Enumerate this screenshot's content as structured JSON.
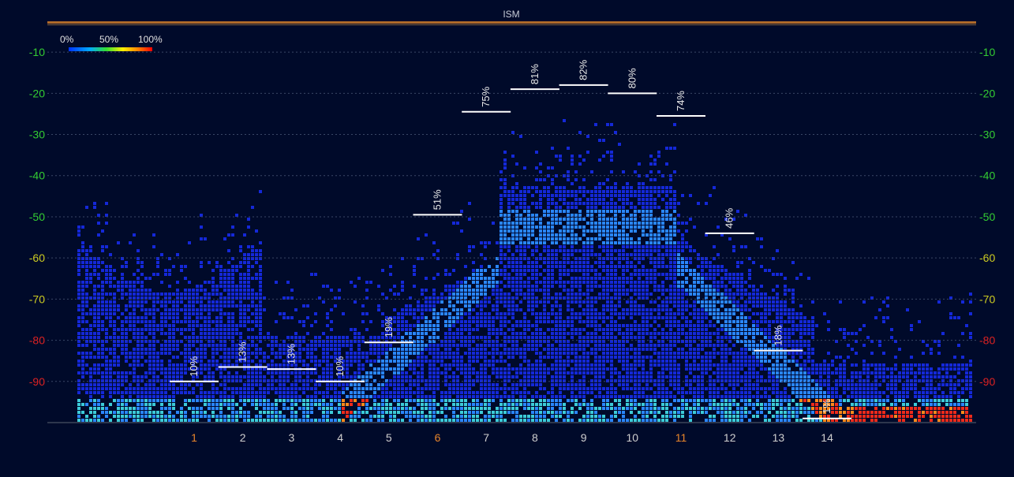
{
  "chart_data": {
    "type": "heatmap",
    "title": "ISM",
    "legend": {
      "labels": [
        "0%",
        "50%",
        "100%"
      ],
      "placement": "top-left"
    },
    "ylim": [
      -100,
      -5
    ],
    "yticks": [
      -10,
      -20,
      -30,
      -40,
      -50,
      -60,
      -70,
      -80,
      -90
    ],
    "ytick_colors": {
      "-10": "#33cc33",
      "-20": "#33cc33",
      "-30": "#33cc33",
      "-40": "#33cc33",
      "-50": "#33cc33",
      "-60": "#cccc22",
      "-70": "#cccc22",
      "-80": "#dd2222",
      "-90": "#dd2222"
    },
    "grid": true,
    "channels": [
      {
        "label": "1",
        "color": "#e8862a",
        "utilization": "10%",
        "level": -90
      },
      {
        "label": "2",
        "color": "#cfcfcf",
        "utilization": "13%",
        "level": -86.5
      },
      {
        "label": "3",
        "color": "#cfcfcf",
        "utilization": "13%",
        "level": -87
      },
      {
        "label": "4",
        "color": "#cfcfcf",
        "utilization": "10%",
        "level": -90
      },
      {
        "label": "5",
        "color": "#cfcfcf",
        "utilization": "19%",
        "level": -80.5
      },
      {
        "label": "6",
        "color": "#e8862a",
        "utilization": "51%",
        "level": -49.5
      },
      {
        "label": "7",
        "color": "#cfcfcf",
        "utilization": "75%",
        "level": -24.5
      },
      {
        "label": "8",
        "color": "#cfcfcf",
        "utilization": "81%",
        "level": -19
      },
      {
        "label": "9",
        "color": "#cfcfcf",
        "utilization": "82%",
        "level": -18
      },
      {
        "label": "10",
        "color": "#cfcfcf",
        "utilization": "80%",
        "level": -20
      },
      {
        "label": "11",
        "color": "#e8862a",
        "utilization": "74%",
        "level": -25.5
      },
      {
        "label": "12",
        "color": "#cfcfcf",
        "utilization": "46%",
        "level": -54
      },
      {
        "label": "13",
        "color": "#cfcfcf",
        "utilization": "18%",
        "level": -82.5
      },
      {
        "label": "14",
        "color": "#cfcfcf",
        "utilization": "1%",
        "level": -99
      }
    ]
  }
}
